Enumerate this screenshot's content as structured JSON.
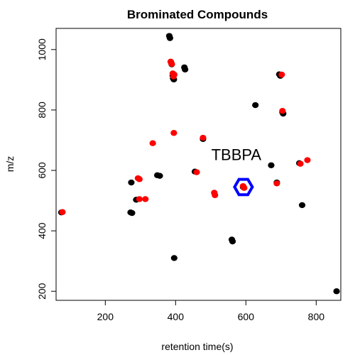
{
  "chart_data": {
    "type": "scatter",
    "title": "Brominated Compounds",
    "xlabel": "retention time(s)",
    "ylabel": "m/z",
    "xlim": [
      60,
      870
    ],
    "ylim": [
      170,
      1070
    ],
    "x_ticks": [
      200,
      400,
      600,
      800
    ],
    "y_ticks": [
      200,
      400,
      600,
      800,
      1000
    ],
    "x_tick_labels": [
      "200",
      "400",
      "600",
      "800"
    ],
    "y_tick_labels": [
      "200",
      "400",
      "600",
      "800",
      "1000"
    ],
    "grid": false,
    "series": [
      {
        "name": "black",
        "color": "#000000",
        "points": [
          [
            75,
            461
          ],
          [
            272,
            461
          ],
          [
            276,
            459
          ],
          [
            274,
            560
          ],
          [
            288,
            503
          ],
          [
            348,
            584
          ],
          [
            355,
            582
          ],
          [
            382,
            1045
          ],
          [
            384,
            1038
          ],
          [
            387,
            958
          ],
          [
            389,
            951
          ],
          [
            392,
            914
          ],
          [
            393,
            905
          ],
          [
            395,
            901
          ],
          [
            396,
            310
          ],
          [
            425,
            941
          ],
          [
            427,
            934
          ],
          [
            455,
            596
          ],
          [
            478,
            704
          ],
          [
            560,
            371
          ],
          [
            562,
            365
          ],
          [
            592,
            545
          ],
          [
            627,
            816
          ],
          [
            672,
            617
          ],
          [
            688,
            560
          ],
          [
            695,
            918
          ],
          [
            698,
            913
          ],
          [
            704,
            793
          ],
          [
            706,
            788
          ],
          [
            760,
            485
          ],
          [
            752,
            624
          ],
          [
            858,
            200
          ]
        ]
      },
      {
        "name": "red",
        "color": "#ff0000",
        "points": [
          [
            78,
            462
          ],
          [
            293,
            574
          ],
          [
            297,
            571
          ],
          [
            297,
            505
          ],
          [
            314,
            505
          ],
          [
            335,
            690
          ],
          [
            386,
            960
          ],
          [
            389,
            952
          ],
          [
            392,
            921
          ],
          [
            394,
            911
          ],
          [
            396,
            917
          ],
          [
            395,
            724
          ],
          [
            460,
            594
          ],
          [
            478,
            708
          ],
          [
            510,
            526
          ],
          [
            512,
            518
          ],
          [
            592,
            548
          ],
          [
            595,
            542
          ],
          [
            688,
            557
          ],
          [
            702,
            917
          ],
          [
            704,
            797
          ],
          [
            755,
            622
          ],
          [
            775,
            634
          ]
        ]
      }
    ],
    "highlight": {
      "label": "TBBPA",
      "x": 593,
      "y": 545,
      "color": "#0000ff"
    }
  }
}
